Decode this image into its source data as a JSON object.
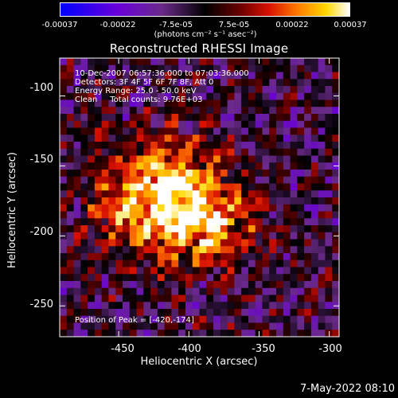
{
  "colorbar": {
    "ticks": [
      "-0.00037",
      "-0.00022",
      "-7.5e-05",
      "7.5e-05",
      "0.00022",
      "0.00037"
    ],
    "unit_label": "(photons cm⁻² s⁻¹ asec⁻²)"
  },
  "chart_data": {
    "type": "heatmap",
    "title": "Reconstructed RHESSI Image",
    "xlabel": "Heliocentric X (arcsec)",
    "ylabel": "Heliocentric Y (arcsec)",
    "xlim": [
      -492,
      -293
    ],
    "ylim": [
      -272,
      -73
    ],
    "xticks": [
      -450,
      -400,
      -350,
      -300
    ],
    "yticks": [
      -100,
      -150,
      -200,
      -250
    ],
    "color_range": [
      -0.00037,
      0.00037
    ],
    "peak": [
      -420,
      -174
    ]
  },
  "info": {
    "time": "10-Dec-2007 06:57:36.000 to 07:03:36.000",
    "detectors": "Detectors: 3F 4F 5F 6F 7F 8F, Att 0",
    "energy": "Energy Range: 25.0 - 50.0 keV",
    "clean": "Clean     Total counts: 9.76E+03",
    "peak_text": "Position of Peak = [-420,-174]"
  },
  "timestamp": "7-May-2022 08:10"
}
